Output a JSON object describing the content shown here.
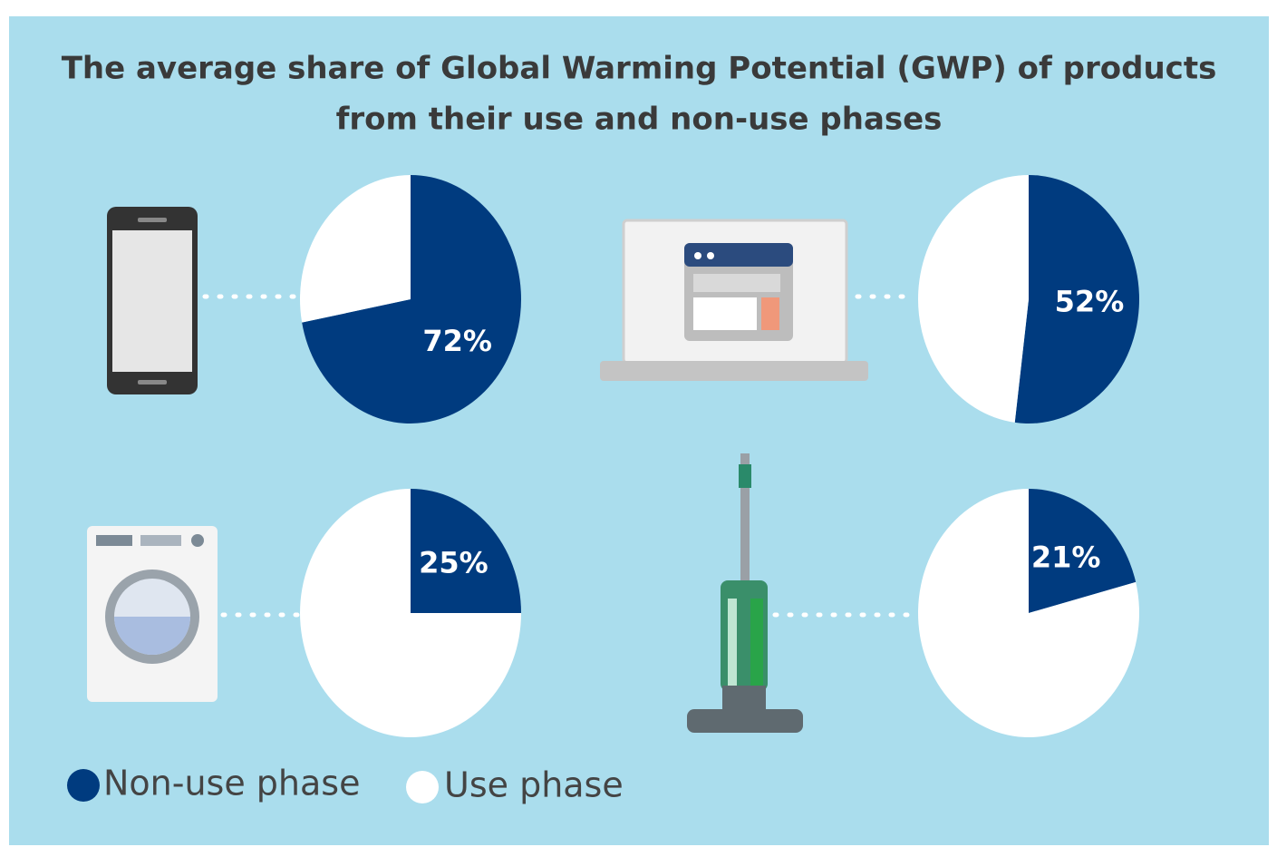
{
  "title": [
    "The average share of Global Warming Potential (GWP) of products",
    "from their use and non-use phases"
  ],
  "chart_data": [
    {
      "type": "pie",
      "categories": [
        "Non-use phase",
        "Use phase"
      ],
      "values": [
        72,
        28
      ],
      "value_labels": [
        "72%",
        null
      ],
      "colors": [
        "#003b7f",
        "#ffffff"
      ]
    },
    {
      "type": "pie",
      "categories": [
        "Non-use phase",
        "Use phase"
      ],
      "values": [
        52,
        48
      ],
      "value_labels": [
        "52%",
        null
      ],
      "colors": [
        "#003b7f",
        "#ffffff"
      ]
    },
    {
      "type": "pie",
      "categories": [
        "Non-use phase",
        "Use phase"
      ],
      "values": [
        25,
        75
      ],
      "value_labels": [
        "25%",
        null
      ],
      "colors": [
        "#003b7f",
        "#ffffff"
      ]
    },
    {
      "type": "pie",
      "categories": [
        "Non-use phase",
        "Use phase"
      ],
      "values": [
        21,
        79
      ],
      "value_labels": [
        "21%",
        null
      ],
      "colors": [
        "#003b7f",
        "#ffffff"
      ]
    }
  ]
}
